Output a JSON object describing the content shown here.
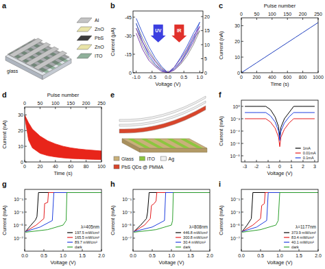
{
  "chart_data": [
    {
      "label": "a",
      "type": "diagram",
      "layers": [
        {
          "name": "Al",
          "color": "#c4c4c4"
        },
        {
          "name": "ZnO",
          "color": "#e9e4a8"
        },
        {
          "name": "PbS",
          "color": "#3c3c3c"
        },
        {
          "name": "ZnO",
          "color": "#e9e4a8"
        },
        {
          "name": "ITO",
          "color": "#8fb09a"
        }
      ],
      "substrate": "glass"
    },
    {
      "label": "b",
      "type": "line",
      "x_label": "Voltage (V)",
      "y_label": "Current (μA)",
      "xlim": [
        -1.1,
        1.1
      ],
      "xticks": [
        {
          "value": -1,
          "label": "-1.0"
        },
        -0.5,
        {
          "value": 0,
          "label": "0.0"
        },
        0.5,
        {
          "value": 1,
          "label": "1.0"
        }
      ],
      "ylim": [
        0,
        -50
      ],
      "yticks": [
        -45,
        -30,
        -15,
        0
      ],
      "y2lim": [
        0,
        22
      ],
      "y2ticks": [
        0,
        5,
        10,
        15,
        20
      ],
      "annotations": [
        "UV",
        "IR"
      ],
      "series": [
        {
          "color": "#8c8c8c",
          "x": [
            -1,
            -0.8,
            -0.6,
            -0.4,
            -0.2,
            0,
            -0.2,
            -0.4,
            -0.6,
            -0.8,
            -1
          ],
          "values": [
            -40,
            -28,
            -18,
            -10,
            -4,
            0,
            -2,
            -6,
            -12,
            -22,
            -36
          ]
        },
        {
          "color": "#3b5bd6",
          "x": [
            -1,
            -0.8,
            -0.6,
            -0.4,
            -0.2,
            0,
            -0.2,
            -0.4,
            -0.6,
            -0.8,
            -1
          ],
          "values": [
            -44,
            -32,
            -21,
            -12,
            -5,
            0,
            -2,
            -7,
            -14,
            -25,
            -40
          ]
        },
        {
          "color": "#7a3fb0",
          "x": [
            -1,
            -0.8,
            -0.6,
            -0.4,
            -0.2,
            0,
            -0.2,
            -0.4,
            -0.6,
            -0.8,
            -1
          ],
          "values": [
            -36,
            -25,
            -16,
            -9,
            -3,
            0,
            -1,
            -5,
            -10,
            -19,
            -32
          ]
        },
        {
          "color": "#8c8c8c",
          "axis": "y2",
          "x": [
            0,
            0.2,
            0.4,
            0.6,
            0.8,
            1,
            0.8,
            0.6,
            0.4,
            0.2,
            0
          ],
          "values": [
            0,
            1,
            3,
            6,
            10,
            15,
            12,
            8,
            4,
            1.5,
            0
          ]
        },
        {
          "color": "#3b5bd6",
          "axis": "y2",
          "x": [
            0,
            0.2,
            0.4,
            0.6,
            0.8,
            1,
            0.8,
            0.6,
            0.4,
            0.2,
            0
          ],
          "values": [
            0,
            1.5,
            4,
            7.5,
            12,
            18,
            14,
            9.5,
            5.5,
            2,
            0
          ]
        },
        {
          "color": "#7a3fb0",
          "axis": "y2",
          "x": [
            0,
            0.2,
            0.4,
            0.6,
            0.8,
            1,
            0.8,
            0.6,
            0.4,
            0.2,
            0
          ],
          "values": [
            0,
            1,
            3.5,
            7,
            11,
            16.5,
            13,
            8.5,
            5,
            2,
            0
          ]
        }
      ]
    },
    {
      "label": "c",
      "type": "line",
      "x_label": "Time (s)",
      "y_label": "Current (nA)",
      "x2_label": "Pulse number",
      "x": [
        0,
        100,
        200,
        300,
        400,
        500,
        600,
        700,
        800,
        900,
        1000
      ],
      "xlim": [
        0,
        1000
      ],
      "xticks": [
        0,
        200,
        400,
        600,
        800,
        1000
      ],
      "x2lim": [
        0,
        250
      ],
      "x2ticks": [
        0,
        50,
        100,
        150,
        200,
        250
      ],
      "ylim": [
        0,
        35
      ],
      "yticks": [
        0,
        10,
        20,
        30
      ],
      "series": [
        {
          "color": "#1f3fbf",
          "values": [
            0,
            3.2,
            6.4,
            9.6,
            12.8,
            16,
            19.2,
            22.4,
            25.6,
            28.8,
            32
          ]
        }
      ]
    },
    {
      "label": "d",
      "type": "band",
      "x_label": "Time (s)",
      "y_label": "Current (nA)",
      "x2_label": "Pulse number",
      "x": [
        0,
        5,
        10,
        20,
        30,
        40,
        50,
        60,
        70,
        80,
        90,
        100
      ],
      "xlim": [
        0,
        100
      ],
      "xticks": [
        0,
        20,
        40,
        60,
        80,
        100
      ],
      "x2lim": [
        0,
        250
      ],
      "x2ticks": [
        0,
        50,
        100,
        150,
        200,
        250
      ],
      "ylim": [
        0,
        35
      ],
      "yticks": [
        0,
        10,
        20,
        30
      ],
      "series": [
        {
          "color": "#e8251a",
          "values": [
            30,
            25,
            21,
            16.5,
            13.5,
            11.5,
            10,
            9,
            8.3,
            7.8,
            7.4,
            7
          ]
        },
        {
          "color": "#e8251a",
          "values": [
            29,
            14,
            9,
            5.5,
            4,
            3.2,
            2.6,
            2.2,
            2,
            1.8,
            1.6,
            1.5
          ]
        }
      ]
    },
    {
      "label": "e",
      "type": "diagram",
      "legend_items": [
        {
          "name": "Glass",
          "color": "#c9b07a"
        },
        {
          "name": "ITO",
          "color": "#8cc63f"
        },
        {
          "name": "Ag",
          "color": "#f0f0f0"
        },
        {
          "name": "PbS QDs @ PMMA",
          "color": "#d8452b"
        }
      ]
    },
    {
      "label": "f",
      "type": "line",
      "log": "y",
      "x_label": "Voltage (V)",
      "y_label": "Current (mA)",
      "legend": "lower right",
      "x": [
        -3,
        -2,
        -1.2,
        -0.8,
        -0.4,
        -0.1,
        0,
        0.1,
        0.4,
        0.8,
        1.2,
        2,
        3
      ],
      "xlim": [
        -3.3,
        3.3
      ],
      "xticks": [
        -3,
        -2,
        -1,
        0,
        1,
        2,
        3
      ],
      "ylim": [
        1e-09,
        10
      ],
      "yticks": [
        {
          "value": 1e-08,
          "label": "10⁻⁸"
        },
        {
          "value": 1e-06,
          "label": "10⁻⁶"
        },
        {
          "value": 0.0001,
          "label": "10⁻⁴"
        },
        {
          "value": 0.01,
          "label": "10⁻²"
        },
        {
          "value": 1,
          "label": "10⁰"
        }
      ],
      "series": [
        {
          "name": "1mA",
          "color": "#000000",
          "values": [
            1,
            1,
            1,
            0.3,
            0.02,
            0.0005,
            1e-05,
            0.0004,
            0.01,
            0.1,
            1,
            1,
            1
          ]
        },
        {
          "name": "0.01mA",
          "color": "#e41a1c",
          "values": [
            0.01,
            0.01,
            0.01,
            0.003,
            0.0003,
            1e-05,
            3e-07,
            1e-05,
            0.0002,
            0.002,
            0.01,
            0.01,
            0.01
          ]
        },
        {
          "name": "0.1mA",
          "color": "#1f3fdf",
          "values": [
            0.1,
            0.1,
            0.1,
            0.03,
            0.003,
            0.0001,
            3e-06,
            0.0001,
            0.002,
            0.02,
            0.1,
            0.1,
            0.1
          ]
        }
      ]
    },
    {
      "label": "g",
      "type": "line",
      "log": "y",
      "x_label": "Voltage (V)",
      "y_label": "Current (mA)",
      "legend": "lower right",
      "annotation": "λ=405nm",
      "xlim": [
        0,
        2
      ],
      "xticks": [
        {
          "value": 0,
          "label": "0.0"
        },
        0.5,
        {
          "value": 1,
          "label": "1.0"
        },
        1.5,
        {
          "value": 2,
          "label": "2.0"
        }
      ],
      "ylim": [
        1e-09,
        3
      ],
      "yticks": [
        {
          "value": 1e-07,
          "label": "10⁻⁷"
        },
        {
          "value": 1e-05,
          "label": "10⁻⁵"
        },
        {
          "value": 0.001,
          "label": "10⁻³"
        },
        {
          "value": 0.1,
          "label": "10⁻¹"
        }
      ],
      "series": [
        {
          "name": "197.5 mW/cm²",
          "color": "#000000",
          "x": [
            0.02,
            0.15,
            0.28,
            0.32,
            0.36,
            2.0
          ],
          "values": [
            1e-06,
            8e-06,
            6e-05,
            0.0002,
            1,
            1
          ]
        },
        {
          "name": "165.5 mW/cm²",
          "color": "#e41a1c",
          "x": [
            0.02,
            0.3,
            0.5,
            0.52,
            0.6,
            0.62,
            2.0
          ],
          "values": [
            1e-06,
            1e-05,
            0.0001,
            0.02,
            0.03,
            1,
            1
          ]
        },
        {
          "name": "89.7 mW/cm²",
          "color": "#1f3fdf",
          "x": [
            0.02,
            0.4,
            0.72,
            0.76,
            2.0
          ],
          "values": [
            1e-06,
            5e-06,
            5e-05,
            1,
            1
          ]
        },
        {
          "name": "dark",
          "color": "#2ca02c",
          "x": [
            0.02,
            0.6,
            1.0,
            1.08,
            1.1,
            2.0
          ],
          "values": [
            8e-07,
            2e-06,
            1e-05,
            5e-05,
            1,
            1
          ]
        }
      ]
    },
    {
      "label": "h",
      "type": "line",
      "log": "y",
      "x_label": "Voltage (V)",
      "y_label": "Current (mA)",
      "legend": "lower right",
      "annotation": "λ=808nm",
      "xlim": [
        0,
        2
      ],
      "xticks": [
        {
          "value": 0,
          "label": "0.0"
        },
        0.5,
        {
          "value": 1,
          "label": "1.0"
        },
        1.5,
        {
          "value": 2,
          "label": "2.0"
        }
      ],
      "ylim": [
        1e-09,
        3
      ],
      "yticks": [
        {
          "value": 1e-07,
          "label": "10⁻⁷"
        },
        {
          "value": 1e-05,
          "label": "10⁻⁵"
        },
        {
          "value": 0.001,
          "label": "10⁻³"
        },
        {
          "value": 0.1,
          "label": "10⁻¹"
        }
      ],
      "series": [
        {
          "name": "446.8 mW/cm²",
          "color": "#000000",
          "x": [
            0.02,
            0.2,
            0.35,
            0.38,
            0.42,
            2.0
          ],
          "values": [
            1e-06,
            1e-05,
            0.0001,
            0.001,
            1,
            1
          ]
        },
        {
          "name": "300.8 mW/cm²",
          "color": "#e41a1c",
          "x": [
            0.02,
            0.3,
            0.45,
            0.48,
            0.55,
            0.6,
            0.62,
            2.0
          ],
          "values": [
            1e-06,
            1e-05,
            0.0001,
            0.01,
            0.02,
            0.05,
            1,
            1
          ]
        },
        {
          "name": "30.4 mW/cm²",
          "color": "#1f3fdf",
          "x": [
            0.02,
            0.5,
            0.82,
            0.85,
            2.0
          ],
          "values": [
            1e-06,
            5e-06,
            5e-05,
            1,
            1
          ]
        },
        {
          "name": "dark",
          "color": "#2ca02c",
          "x": [
            0.02,
            0.6,
            1.0,
            1.03,
            1.05,
            2.0
          ],
          "values": [
            8e-07,
            2e-06,
            1e-05,
            5e-05,
            1,
            1
          ]
        }
      ]
    },
    {
      "label": "i",
      "type": "line",
      "log": "y",
      "x_label": "Voltage (V)",
      "y_label": "Current (mA)",
      "legend": "lower right",
      "annotation": "λ=1177nm",
      "xlim": [
        0,
        2
      ],
      "xticks": [
        {
          "value": 0,
          "label": "0.0"
        },
        0.5,
        {
          "value": 1,
          "label": "1.0"
        },
        1.5,
        {
          "value": 2,
          "label": "2.0"
        }
      ],
      "ylim": [
        1e-09,
        3
      ],
      "yticks": [
        {
          "value": 1e-07,
          "label": "10⁻⁷"
        },
        {
          "value": 1e-05,
          "label": "10⁻⁵"
        },
        {
          "value": 0.001,
          "label": "10⁻³"
        },
        {
          "value": 0.1,
          "label": "10⁻¹"
        }
      ],
      "series": [
        {
          "name": "373.9 mW/cm²",
          "color": "#000000",
          "x": [
            0.02,
            0.15,
            0.26,
            0.3,
            2.0
          ],
          "values": [
            1e-06,
            1e-05,
            0.0001,
            1,
            1
          ]
        },
        {
          "name": "83.4 mW/cm²",
          "color": "#e41a1c",
          "x": [
            0.02,
            0.3,
            0.5,
            0.53,
            0.6,
            0.62,
            2.0
          ],
          "values": [
            1e-06,
            1e-05,
            0.0001,
            0.01,
            0.02,
            1,
            1
          ]
        },
        {
          "name": "40.1 mW/cm²",
          "color": "#1f3fdf",
          "x": [
            0.02,
            0.4,
            0.66,
            0.7,
            2.0
          ],
          "values": [
            1e-06,
            5e-06,
            5e-05,
            1,
            1
          ]
        },
        {
          "name": "dark",
          "color": "#2ca02c",
          "x": [
            0.02,
            0.5,
            0.9,
            0.96,
            1.0,
            2.0
          ],
          "values": [
            8e-07,
            2e-06,
            1e-05,
            5e-05,
            1,
            1
          ]
        }
      ]
    }
  ]
}
